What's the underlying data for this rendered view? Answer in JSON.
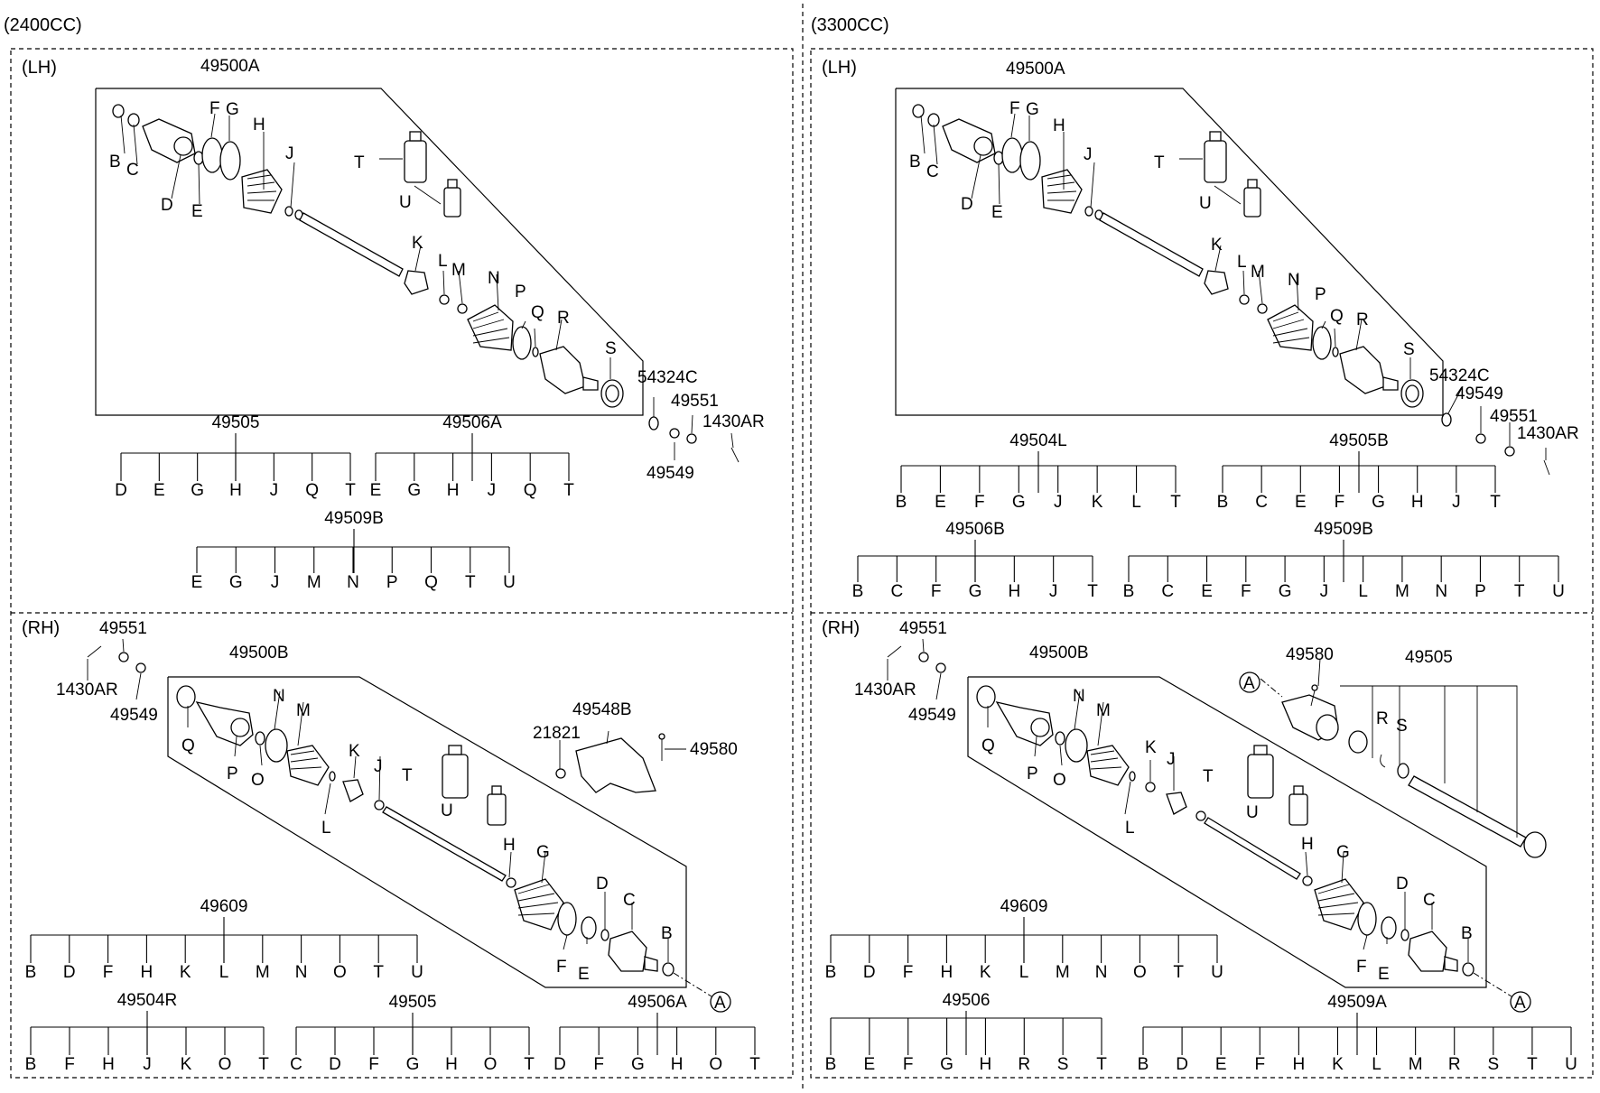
{
  "panels": [
    {
      "id": "p2400lh",
      "engine": "(2400CC)",
      "side": "(LH)",
      "kit_label": "49500A",
      "trees": [
        {
          "title": "49505",
          "items": [
            "D",
            "E",
            "G",
            "H",
            "J",
            "Q",
            "T"
          ]
        },
        {
          "title": "49506A",
          "items": [
            "E",
            "G",
            "H",
            "J",
            "Q",
            "T"
          ]
        },
        {
          "title": "49509B",
          "items": [
            "E",
            "G",
            "J",
            "M",
            "N",
            "P",
            "Q",
            "T",
            "U"
          ]
        }
      ],
      "extras": [
        "54324C",
        "49551",
        "1430AR",
        "49549"
      ],
      "letters": [
        "B",
        "C",
        "D",
        "E",
        "F",
        "G",
        "H",
        "J",
        "T",
        "U",
        "K",
        "L",
        "M",
        "N",
        "P",
        "Q",
        "R",
        "S"
      ]
    },
    {
      "id": "p3300lh",
      "engine": "(3300CC)",
      "side": "(LH)",
      "kit_label": "49500A",
      "trees": [
        {
          "title": "49504L",
          "items": [
            "B",
            "E",
            "F",
            "G",
            "J",
            "K",
            "L",
            "T"
          ]
        },
        {
          "title": "49505B",
          "items": [
            "B",
            "C",
            "E",
            "F",
            "G",
            "H",
            "J",
            "T"
          ]
        },
        {
          "title": "49506B",
          "items": [
            "B",
            "C",
            "F",
            "G",
            "H",
            "J",
            "T"
          ]
        },
        {
          "title": "49509B",
          "items": [
            "B",
            "C",
            "E",
            "F",
            "G",
            "J",
            "L",
            "M",
            "N",
            "P",
            "T",
            "U"
          ]
        }
      ],
      "extras": [
        "54324C",
        "49549",
        "49551",
        "1430AR"
      ],
      "letters": [
        "B",
        "C",
        "D",
        "E",
        "F",
        "G",
        "H",
        "J",
        "T",
        "U",
        "K",
        "L",
        "M",
        "N",
        "P",
        "Q",
        "R",
        "S"
      ]
    },
    {
      "id": "p2400rh",
      "side": "(RH)",
      "kit_label": "49500B",
      "trees": [
        {
          "title": "49609",
          "items": [
            "B",
            "D",
            "F",
            "H",
            "K",
            "L",
            "M",
            "N",
            "O",
            "T",
            "U"
          ]
        },
        {
          "title": "49504R",
          "items": [
            "B",
            "F",
            "H",
            "J",
            "K",
            "O",
            "T"
          ]
        },
        {
          "title": "49505",
          "items": [
            "C",
            "D",
            "F",
            "G",
            "H",
            "O",
            "T"
          ]
        },
        {
          "title": "49506A",
          "items": [
            "D",
            "F",
            "G",
            "H",
            "O",
            "T"
          ]
        }
      ],
      "extras": [
        "49551",
        "1430AR",
        "49549",
        "21821",
        "49548B",
        "49580"
      ],
      "letters": [
        "Q",
        "P",
        "O",
        "N",
        "M",
        "L",
        "K",
        "J",
        "T",
        "U",
        "H",
        "G",
        "F",
        "E",
        "D",
        "C",
        "B"
      ],
      "ref": "A"
    },
    {
      "id": "p3300rh",
      "side": "(RH)",
      "kit_label": "49500B",
      "trees": [
        {
          "title": "49609",
          "items": [
            "B",
            "D",
            "F",
            "H",
            "K",
            "L",
            "M",
            "N",
            "O",
            "T",
            "U"
          ]
        },
        {
          "title": "49506",
          "items": [
            "B",
            "E",
            "F",
            "G",
            "H",
            "R",
            "S",
            "T"
          ]
        },
        {
          "title": "49509A",
          "items": [
            "B",
            "D",
            "E",
            "F",
            "H",
            "K",
            "L",
            "M",
            "R",
            "S",
            "T",
            "U"
          ]
        }
      ],
      "extras": [
        "49551",
        "1430AR",
        "49549",
        "49580",
        "49505"
      ],
      "letters": [
        "Q",
        "P",
        "O",
        "N",
        "M",
        "L",
        "K",
        "J",
        "T",
        "U",
        "H",
        "G",
        "F",
        "E",
        "D",
        "C",
        "B",
        "R",
        "S"
      ],
      "ref": "A"
    }
  ]
}
